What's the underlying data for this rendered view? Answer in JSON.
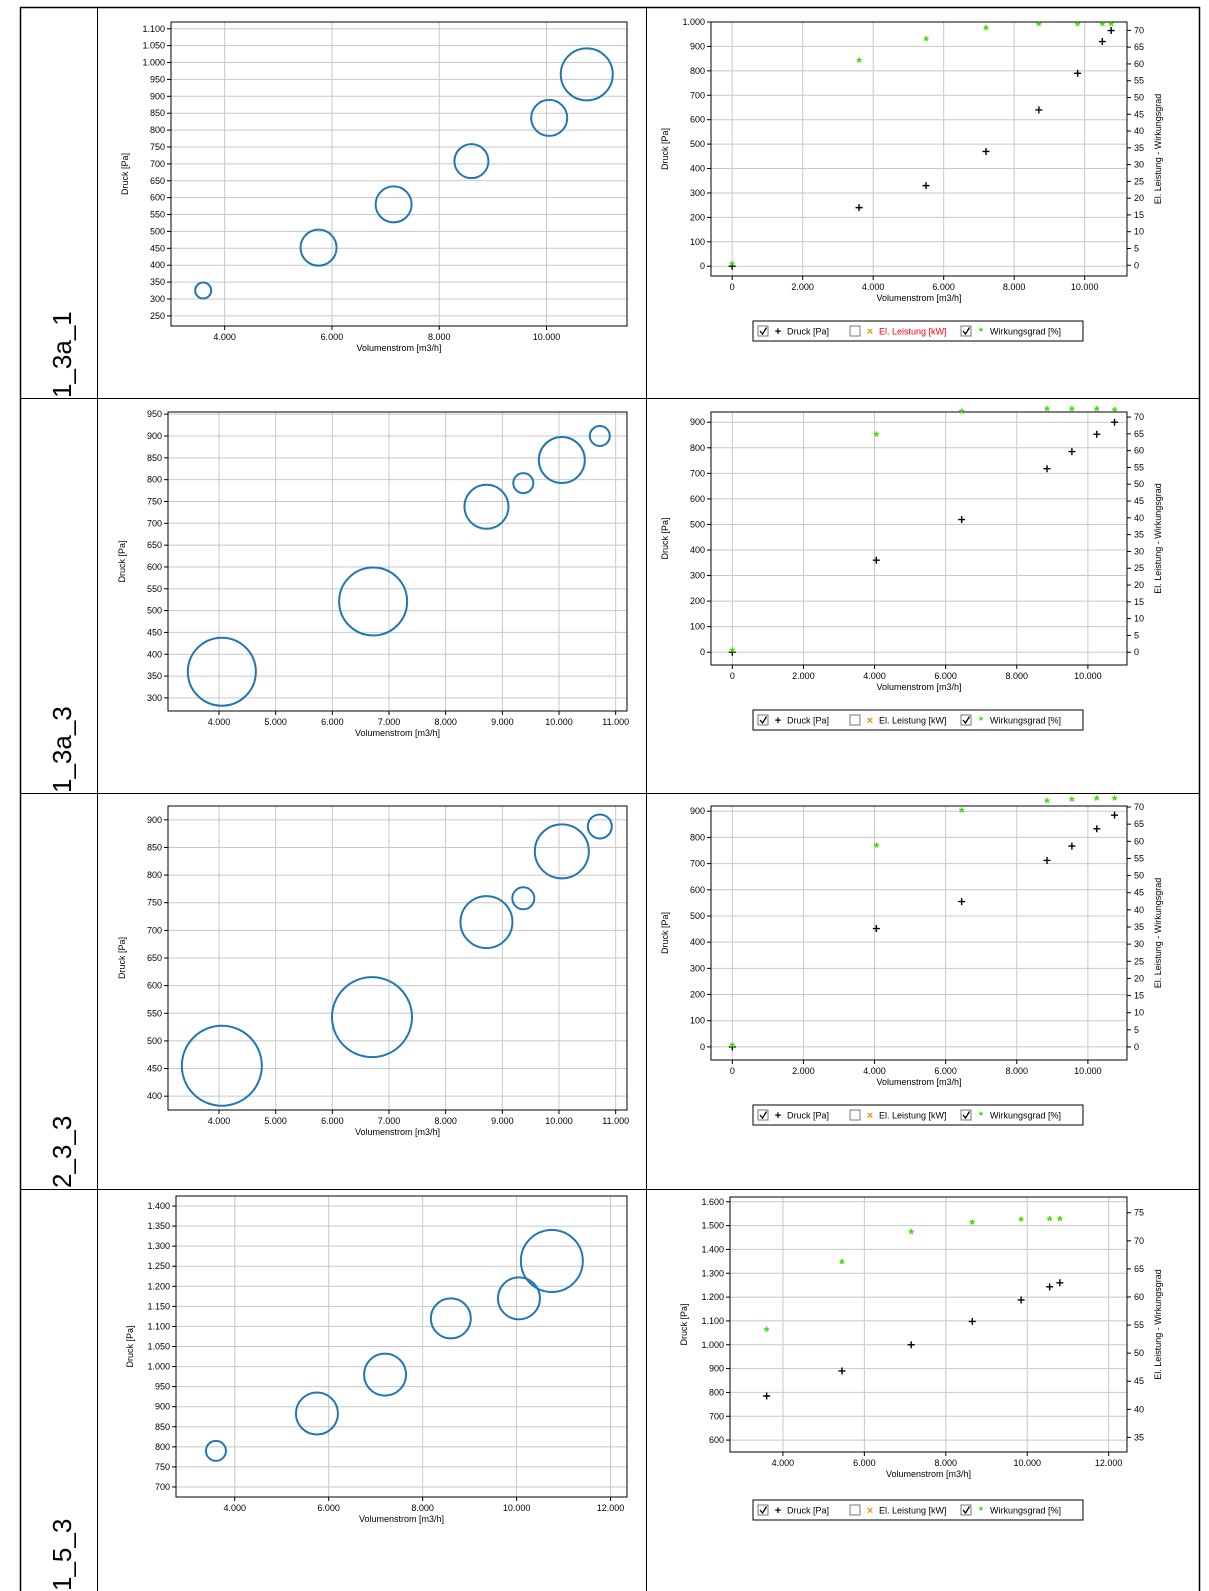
{
  "rows": [
    {
      "label": "1_3a_1"
    },
    {
      "label": "1_3a_3"
    },
    {
      "label": "2_3_3"
    },
    {
      "label": "1_5_3"
    }
  ],
  "colors": {
    "bubble": "#1f78b4",
    "pressure": "#000000",
    "efficiency": "#33dd00",
    "power": "#ff8c00",
    "grid": "#c8c8c8",
    "legend_red": "#ff0000"
  },
  "chart_data": [
    {
      "type": "scatter",
      "variant": "bubble",
      "row": 0,
      "xlabel": "Volumenstrom [m3/h]",
      "ylabel": "Druck [Pa]",
      "xlim": [
        3000,
        11500
      ],
      "ylim": [
        220,
        1120
      ],
      "xticks": [
        4000,
        6000,
        8000,
        10000
      ],
      "xtick_labels": [
        "4.000",
        "6.000",
        "8.000",
        "10.000"
      ],
      "yticks": [
        250,
        300,
        350,
        400,
        450,
        500,
        550,
        600,
        650,
        700,
        750,
        800,
        850,
        900,
        950,
        1000,
        1050,
        1100
      ],
      "ytick_labels": [
        "250",
        "300",
        "350",
        "400",
        "450",
        "500",
        "550",
        "600",
        "650",
        "700",
        "750",
        "800",
        "850",
        "900",
        "950",
        "1.000",
        "1.050",
        "1.100"
      ],
      "grid": true,
      "points": [
        {
          "x": 3600,
          "y": 325,
          "size": 8
        },
        {
          "x": 5750,
          "y": 452,
          "size": 18
        },
        {
          "x": 7150,
          "y": 580,
          "size": 18
        },
        {
          "x": 8600,
          "y": 708,
          "size": 17
        },
        {
          "x": 10050,
          "y": 836,
          "size": 18
        },
        {
          "x": 10750,
          "y": 965,
          "size": 26
        }
      ]
    },
    {
      "type": "scatter",
      "variant": "dual",
      "row": 0,
      "xlabel": "Volumenstrom [m3/h]",
      "ylabel": "Druck [Pa]",
      "y2label": "El. Leistung - Wirkungsgrad",
      "xlim": [
        -600,
        11200
      ],
      "ylim": [
        -40,
        1000
      ],
      "y2lim": [
        -3.2,
        72.5
      ],
      "xticks": [
        0,
        2000,
        4000,
        6000,
        8000,
        10000
      ],
      "xtick_labels": [
        "0",
        "2.000",
        "4.000",
        "6.000",
        "8.000",
        "10.000"
      ],
      "yticks": [
        0,
        100,
        200,
        300,
        400,
        500,
        600,
        700,
        800,
        900,
        1000
      ],
      "ytick_labels": [
        "0",
        "100",
        "200",
        "300",
        "400",
        "500",
        "600",
        "700",
        "800",
        "900",
        "1.000"
      ],
      "y2ticks": [
        0,
        5,
        10,
        15,
        20,
        25,
        30,
        35,
        40,
        45,
        50,
        55,
        60,
        65,
        70
      ],
      "grid": true,
      "series": [
        {
          "name": "Druck [Pa]",
          "axis": "left",
          "marker": "+",
          "x": [
            0,
            3600,
            5500,
            7200,
            8700,
            9800,
            10500,
            10750
          ],
          "y": [
            0,
            240,
            330,
            470,
            640,
            790,
            920,
            965
          ]
        },
        {
          "name": "Wirkungsgrad [%]",
          "axis": "right",
          "marker": "*",
          "x": [
            0,
            3600,
            5500,
            7200,
            8700,
            9800,
            10500,
            10750
          ],
          "y": [
            0,
            60.6,
            67,
            70.2,
            71.5,
            71.5,
            71.5,
            71.5
          ]
        }
      ],
      "legend": {
        "position": "bottom",
        "items": [
          {
            "checked": true,
            "marker": "+",
            "text": "Druck [Pa]"
          },
          {
            "checked": false,
            "marker": "×",
            "text": "El. Leistung [kW]",
            "highlight": true
          },
          {
            "checked": true,
            "marker": "*",
            "text": "Wirkungsgrad [%]"
          }
        ]
      }
    },
    {
      "type": "scatter",
      "variant": "bubble",
      "row": 1,
      "xlabel": "Volumenstrom [m3/h]",
      "ylabel": "Druck [Pa]",
      "xlim": [
        3100,
        11200
      ],
      "ylim": [
        270,
        955
      ],
      "xticks": [
        4000,
        5000,
        6000,
        7000,
        8000,
        9000,
        10000,
        11000
      ],
      "xtick_labels": [
        "4.000",
        "5.000",
        "6.000",
        "7.000",
        "8.000",
        "9.000",
        "10.000",
        "11.000"
      ],
      "yticks": [
        300,
        350,
        400,
        450,
        500,
        550,
        600,
        650,
        700,
        750,
        800,
        850,
        900,
        950
      ],
      "ytick_labels": [
        "300",
        "350",
        "400",
        "450",
        "500",
        "550",
        "600",
        "650",
        "700",
        "750",
        "800",
        "850",
        "900",
        "950"
      ],
      "grid": true,
      "points": [
        {
          "x": 4050,
          "y": 360,
          "size": 34
        },
        {
          "x": 6720,
          "y": 521,
          "size": 34
        },
        {
          "x": 8720,
          "y": 738,
          "size": 22
        },
        {
          "x": 9370,
          "y": 792,
          "size": 10
        },
        {
          "x": 10050,
          "y": 845,
          "size": 23
        },
        {
          "x": 10720,
          "y": 900,
          "size": 10
        }
      ]
    },
    {
      "type": "scatter",
      "variant": "dual",
      "row": 1,
      "xlabel": "Volumenstrom [m3/h]",
      "ylabel": "Druck [Pa]",
      "y2label": "El. Leistung - Wirkungsgrad",
      "xlim": [
        -600,
        11100
      ],
      "ylim": [
        -50,
        940
      ],
      "y2lim": [
        -3.8,
        71.5
      ],
      "xticks": [
        0,
        2000,
        4000,
        6000,
        8000,
        10000
      ],
      "xtick_labels": [
        "0",
        "2.000",
        "4.000",
        "6.000",
        "8.000",
        "10.000"
      ],
      "yticks": [
        0,
        100,
        200,
        300,
        400,
        500,
        600,
        700,
        800,
        900
      ],
      "ytick_labels": [
        "0",
        "100",
        "200",
        "300",
        "400",
        "500",
        "600",
        "700",
        "800",
        "900"
      ],
      "y2ticks": [
        0,
        5,
        10,
        15,
        20,
        25,
        30,
        35,
        40,
        45,
        50,
        55,
        60,
        65,
        70
      ],
      "grid": true,
      "series": [
        {
          "name": "Druck [Pa]",
          "axis": "left",
          "marker": "+",
          "x": [
            0,
            4050,
            6450,
            8850,
            9550,
            10250,
            10750
          ],
          "y": [
            0,
            360,
            519,
            718,
            785,
            853,
            900
          ]
        },
        {
          "name": "Wirkungsgrad [%]",
          "axis": "right",
          "marker": "*",
          "x": [
            0,
            4050,
            6450,
            8850,
            9550,
            10250,
            10750
          ],
          "y": [
            0,
            64.3,
            71.2,
            72,
            72,
            72,
            71.6
          ]
        }
      ],
      "legend": {
        "position": "bottom",
        "items": [
          {
            "checked": true,
            "marker": "+",
            "text": "Druck [Pa]"
          },
          {
            "checked": false,
            "marker": "×",
            "text": "El. Leistung [kW]"
          },
          {
            "checked": true,
            "marker": "*",
            "text": "Wirkungsgrad [%]"
          }
        ]
      }
    },
    {
      "type": "scatter",
      "variant": "bubble",
      "row": 2,
      "xlabel": "Volumenstrom [m3/h]",
      "ylabel": "Druck [Pa]",
      "xlim": [
        3100,
        11200
      ],
      "ylim": [
        375,
        925
      ],
      "xticks": [
        4000,
        5000,
        6000,
        7000,
        8000,
        9000,
        10000,
        11000
      ],
      "xtick_labels": [
        "4.000",
        "5.000",
        "6.000",
        "7.000",
        "8.000",
        "9.000",
        "10.000",
        "11.000"
      ],
      "yticks": [
        400,
        450,
        500,
        550,
        600,
        650,
        700,
        750,
        800,
        850,
        900
      ],
      "ytick_labels": [
        "400",
        "450",
        "500",
        "550",
        "600",
        "650",
        "700",
        "750",
        "800",
        "850",
        "900"
      ],
      "grid": true,
      "points": [
        {
          "x": 4050,
          "y": 455,
          "size": 40
        },
        {
          "x": 6700,
          "y": 543,
          "size": 40
        },
        {
          "x": 8720,
          "y": 715,
          "size": 26
        },
        {
          "x": 9370,
          "y": 758,
          "size": 11
        },
        {
          "x": 10050,
          "y": 843,
          "size": 27
        },
        {
          "x": 10720,
          "y": 888,
          "size": 12
        }
      ]
    },
    {
      "type": "scatter",
      "variant": "dual",
      "row": 2,
      "xlabel": "Volumenstrom [m3/h]",
      "ylabel": "Druck [Pa]",
      "y2label": "El. Leistung - Wirkungsgrad",
      "xlim": [
        -600,
        11100
      ],
      "ylim": [
        -50,
        920
      ],
      "y2lim": [
        -3.8,
        70.3
      ],
      "xticks": [
        0,
        2000,
        4000,
        6000,
        8000,
        10000
      ],
      "xtick_labels": [
        "0",
        "2.000",
        "4.000",
        "6.000",
        "8.000",
        "10.000"
      ],
      "yticks": [
        0,
        100,
        200,
        300,
        400,
        500,
        600,
        700,
        800,
        900
      ],
      "ytick_labels": [
        "0",
        "100",
        "200",
        "300",
        "400",
        "500",
        "600",
        "700",
        "800",
        "900"
      ],
      "y2ticks": [
        0,
        5,
        10,
        15,
        20,
        25,
        30,
        35,
        40,
        45,
        50,
        55,
        60,
        65,
        70
      ],
      "grid": true,
      "series": [
        {
          "name": "Druck [Pa]",
          "axis": "left",
          "marker": "+",
          "x": [
            0,
            4050,
            6450,
            8850,
            9550,
            10250,
            10750
          ],
          "y": [
            0,
            452,
            555,
            712,
            767,
            833,
            885
          ]
        },
        {
          "name": "Wirkungsgrad [%]",
          "axis": "right",
          "marker": "*",
          "x": [
            0,
            4050,
            6450,
            8850,
            9550,
            10250,
            10750
          ],
          "y": [
            0,
            58.3,
            68.5,
            71.3,
            71.8,
            72,
            72
          ]
        }
      ],
      "legend": {
        "position": "bottom",
        "items": [
          {
            "checked": true,
            "marker": "+",
            "text": "Druck [Pa]"
          },
          {
            "checked": false,
            "marker": "×",
            "text": "El. Leistung [kW]"
          },
          {
            "checked": true,
            "marker": "*",
            "text": "Wirkungsgrad [%]"
          }
        ]
      }
    },
    {
      "type": "scatter",
      "variant": "bubble",
      "row": 3,
      "xlabel": "Volumenstrom [m3/h]",
      "ylabel": "Druck [Pa]",
      "xlim": [
        2750,
        12350
      ],
      "ylim": [
        675,
        1425
      ],
      "xticks": [
        4000,
        6000,
        8000,
        10000,
        12000
      ],
      "xtick_labels": [
        "4.000",
        "6.000",
        "8.000",
        "10.000",
        "12.000"
      ],
      "yticks": [
        700,
        750,
        800,
        850,
        900,
        950,
        1000,
        1050,
        1100,
        1150,
        1200,
        1250,
        1300,
        1350,
        1400
      ],
      "ytick_labels": [
        "700",
        "750",
        "800",
        "850",
        "900",
        "950",
        "1.000",
        "1.050",
        "1.100",
        "1.150",
        "1.200",
        "1.250",
        "1.300",
        "1.350",
        "1.400"
      ],
      "grid": true,
      "points": [
        {
          "x": 3600,
          "y": 790,
          "size": 10
        },
        {
          "x": 5750,
          "y": 883,
          "size": 21
        },
        {
          "x": 7200,
          "y": 980,
          "size": 21
        },
        {
          "x": 8600,
          "y": 1120,
          "size": 20
        },
        {
          "x": 10050,
          "y": 1170,
          "size": 21
        },
        {
          "x": 10750,
          "y": 1263,
          "size": 31
        }
      ]
    },
    {
      "type": "scatter",
      "variant": "dual",
      "row": 3,
      "xlabel": "Volumenstrom [m3/h]",
      "ylabel": "Druck [Pa]",
      "y2label": "El. Leistung - Wirkungsgrad",
      "xlim": [
        2700,
        12450
      ],
      "ylim": [
        550,
        1620
      ],
      "y2lim": [
        32.4,
        77.8
      ],
      "xticks": [
        4000,
        6000,
        8000,
        10000,
        12000
      ],
      "xtick_labels": [
        "4.000",
        "6.000",
        "8.000",
        "10.000",
        "12.000"
      ],
      "yticks": [
        600,
        700,
        800,
        900,
        1000,
        1100,
        1200,
        1300,
        1400,
        1500,
        1600
      ],
      "ytick_labels": [
        "600",
        "700",
        "800",
        "900",
        "1.000",
        "1.100",
        "1.200",
        "1.300",
        "1.400",
        "1.500",
        "1.600"
      ],
      "y2ticks": [
        35,
        40,
        45,
        50,
        55,
        60,
        65,
        70,
        75
      ],
      "grid": true,
      "series": [
        {
          "name": "Druck [Pa]",
          "axis": "left",
          "marker": "+",
          "x": [
            3600,
            5450,
            7150,
            8650,
            9850,
            10550,
            10800
          ],
          "y": [
            785,
            890,
            1000,
            1098,
            1188,
            1243,
            1260
          ]
        },
        {
          "name": "Wirkungsgrad [%]",
          "axis": "right",
          "marker": "*",
          "x": [
            3600,
            5450,
            7150,
            8650,
            9850,
            10550,
            10800
          ],
          "y": [
            53.9,
            66,
            71.3,
            73,
            73.5,
            73.6,
            73.6
          ]
        }
      ],
      "legend": {
        "position": "bottom",
        "items": [
          {
            "checked": true,
            "marker": "+",
            "text": "Druck [Pa]"
          },
          {
            "checked": false,
            "marker": "×",
            "text": "El. Leistung [kW]"
          },
          {
            "checked": true,
            "marker": "*",
            "text": "Wirkungsgrad [%]"
          }
        ]
      }
    }
  ]
}
